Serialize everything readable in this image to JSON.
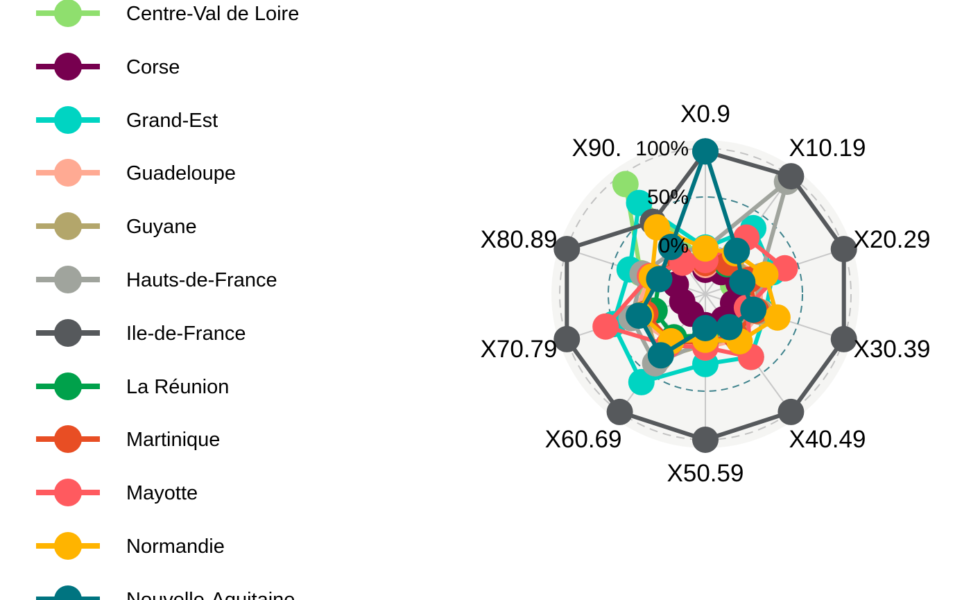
{
  "chart_data": {
    "type": "radar",
    "axes": [
      "X0.9",
      "X10.19",
      "X20.29",
      "X30.39",
      "X40.49",
      "X50.59",
      "X60.69",
      "X70.79",
      "X80.89",
      "X90."
    ],
    "grid_labels": [
      "0%",
      "50%",
      "100%"
    ],
    "range": [
      -0.5,
      1.0
    ],
    "legend_position": "left",
    "colors": {
      "panel_background": "#f5f5f3",
      "grid_axis": "#c8c8c8",
      "outer_ring": "#b8b8b8",
      "mid_ring": "#1f6f7a"
    },
    "series": [
      {
        "name": "Centre-Val de Loire",
        "color": "#8fdf6e",
        "values": [
          -0.17,
          -0.18,
          -0.2,
          -0.15,
          -0.05,
          -0.03,
          0.12,
          0.18,
          0.2,
          0.9
        ]
      },
      {
        "name": "Corse",
        "color": "#77004f",
        "values": [
          -0.25,
          -0.22,
          -0.14,
          -0.2,
          -0.18,
          -0.18,
          -0.25,
          -0.25,
          -0.18,
          -0.08
        ]
      },
      {
        "name": "Grand-Est",
        "color": "#00d4c2",
        "values": [
          -0.02,
          0.34,
          0.23,
          0.15,
          0.3,
          0.22,
          0.62,
          0.5,
          0.32,
          0.66
        ]
      },
      {
        "name": "Guadeloupe",
        "color": "#ffaa93",
        "values": [
          -0.2,
          -0.05,
          0.1,
          0.1,
          0.08,
          0.05,
          0.1,
          0.28,
          0.1,
          0.0
        ]
      },
      {
        "name": "Guyane",
        "color": "#b3a66b",
        "values": [
          -0.1,
          -0.03,
          0.05,
          0.08,
          0.05,
          0.02,
          0.32,
          0.15,
          0.1,
          -0.02
        ]
      },
      {
        "name": "Hauts-de-France",
        "color": "#a0a49d",
        "values": [
          -0.03,
          0.93,
          0.1,
          0.05,
          -0.03,
          -0.01,
          0.38,
          0.3,
          0.18,
          0.05
        ]
      },
      {
        "name": "Ile-de-France",
        "color": "#56595c",
        "values": [
          0.97,
          1.0,
          1.0,
          1.0,
          1.0,
          1.0,
          1.0,
          1.0,
          1.0,
          0.42
        ]
      },
      {
        "name": "La Réunion",
        "color": "#00a14b",
        "values": [
          -0.15,
          -0.12,
          -0.05,
          0.0,
          -0.05,
          -0.08,
          0.05,
          0.05,
          0.0,
          -0.05
        ]
      },
      {
        "name": "Martinique",
        "color": "#e84e24",
        "values": [
          -0.18,
          -0.1,
          -0.02,
          0.05,
          0.02,
          0.0,
          0.1,
          0.15,
          0.05,
          -0.05
        ]
      },
      {
        "name": "Mayotte",
        "color": "#ff5a5f",
        "values": [
          -0.15,
          0.22,
          0.36,
          -0.05,
          0.3,
          0.05,
          0.15,
          0.58,
          0.1,
          -0.1
        ]
      },
      {
        "name": "Normandie",
        "color": "#ffb400",
        "values": [
          -0.03,
          0.02,
          0.15,
          0.28,
          0.1,
          -0.03,
          0.1,
          0.2,
          0.08,
          0.35
        ]
      },
      {
        "name": "Nouvelle-Aquitaine",
        "color": "#007480",
        "values": [
          0.97,
          0.05,
          -0.1,
          0.02,
          -0.08,
          -0.15,
          0.28,
          0.22,
          0.0,
          0.1
        ]
      }
    ]
  }
}
